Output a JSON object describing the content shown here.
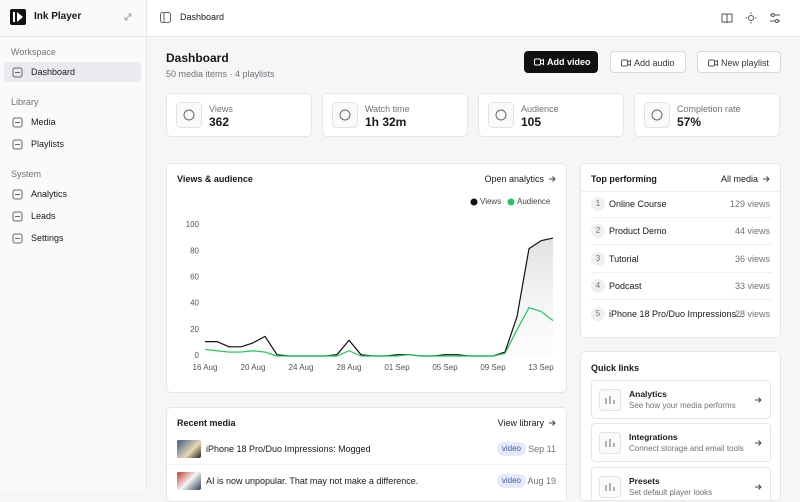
{
  "sidebar": {
    "brand": "Ink Player",
    "sections": [
      {
        "title": "Workspace",
        "items": [
          "Dashboard"
        ]
      },
      {
        "title": "Library",
        "items": [
          "Media",
          "Playlists"
        ]
      },
      {
        "title": "System",
        "items": [
          "Analytics",
          "Leads",
          "Settings"
        ]
      }
    ]
  },
  "topbar": {
    "breadcrumb": "Dashboard"
  },
  "page": {
    "title": "Dashboard",
    "subtitle": "50 media items · 4 playlists",
    "actions": [
      "Add video",
      "Add audio",
      "New playlist"
    ]
  },
  "stats": [
    {
      "label": "Views",
      "value": "362"
    },
    {
      "label": "Watch time",
      "value": "1h 32m"
    },
    {
      "label": "Audience",
      "value": "105"
    },
    {
      "label": "Completion rate",
      "value": "57%"
    }
  ],
  "chart_card": {
    "title": "Views & audience",
    "link": "Open analytics"
  },
  "chart_data": {
    "type": "line",
    "categories": [
      "16 Aug",
      null,
      null,
      null,
      "20 Aug",
      null,
      null,
      null,
      "24 Aug",
      null,
      null,
      null,
      "28 Aug",
      null,
      null,
      null,
      "01 Sep",
      null,
      null,
      null,
      "05 Sep",
      null,
      null,
      null,
      "09 Sep",
      null,
      null,
      null,
      "13 Sep",
      null
    ],
    "series": [
      {
        "name": "Views",
        "color": "#111111",
        "values": [
          11,
          11,
          7,
          7,
          10,
          15,
          1,
          0,
          0,
          0,
          0,
          1,
          12,
          1,
          0,
          0,
          1,
          1,
          0,
          0,
          1,
          1,
          0,
          0,
          0,
          3,
          30,
          82,
          88,
          90
        ]
      },
      {
        "name": "Audience",
        "color": "#22c55e",
        "values": [
          5,
          4,
          3,
          3,
          4,
          3,
          0,
          0,
          0,
          0,
          0,
          0,
          4,
          0,
          0,
          0,
          0,
          1,
          0,
          0,
          0,
          0,
          0,
          0,
          0,
          2,
          20,
          37,
          34,
          27
        ]
      }
    ],
    "ylim": [
      0,
      100
    ],
    "yticks": [
      0,
      20,
      40,
      60,
      80,
      100
    ],
    "grid": false,
    "legend": "top-right"
  },
  "top_performing": {
    "title": "Top performing",
    "link": "All media",
    "items": [
      {
        "rank": 1,
        "name": "Online Course",
        "views": "129 views"
      },
      {
        "rank": 2,
        "name": "Product Demo",
        "views": "44 views"
      },
      {
        "rank": 3,
        "name": "Tutorial",
        "views": "36 views"
      },
      {
        "rank": 4,
        "name": "Podcast",
        "views": "33 views"
      },
      {
        "rank": 5,
        "name": "iPhone 18 Pro/Duo Impressions...",
        "views": "28 views"
      }
    ]
  },
  "quick_links": {
    "title": "Quick links",
    "items": [
      {
        "title": "Analytics",
        "description": "See how your media performs"
      },
      {
        "title": "Integrations",
        "description": "Connect storage and email tools"
      },
      {
        "title": "Presets",
        "description": "Set default player looks"
      }
    ]
  },
  "recent_media": {
    "title": "Recent media",
    "link": "View library",
    "items": [
      {
        "title": "iPhone 18 Pro/Duo Impressions: Mogged",
        "tag": "video",
        "date": "Sep 11"
      },
      {
        "title": "AI is now unpopular. That may not make a difference.",
        "tag": "video",
        "date": "Aug 19"
      }
    ]
  }
}
